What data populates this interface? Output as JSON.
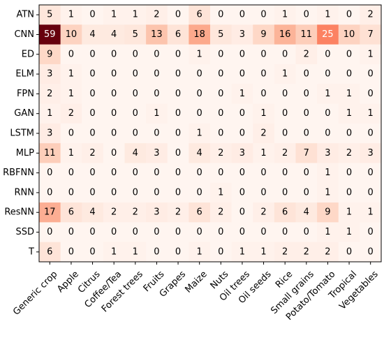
{
  "chart_data": {
    "type": "heatmap",
    "title": "",
    "xlabel": "",
    "ylabel": "",
    "colormap": "Reds",
    "color_range": [
      0,
      59
    ],
    "rows": [
      "ATN",
      "CNN",
      "ED",
      "ELM",
      "FPN",
      "GAN",
      "LSTM",
      "MLP",
      "RBFNN",
      "RNN",
      "ResNN",
      "SSD",
      "T"
    ],
    "columns": [
      "Generic crop",
      "Apple",
      "Citrus",
      "Coffee/Tea",
      "Forest trees",
      "Fruits",
      "Grapes",
      "Maize",
      "Nuts",
      "Oil trees",
      "Oil seeds",
      "Rice",
      "Small grains",
      "Potato/Tomato",
      "Tropical",
      "Vegetables"
    ],
    "values": [
      [
        5,
        1,
        0,
        1,
        1,
        2,
        0,
        6,
        0,
        0,
        0,
        1,
        0,
        1,
        0,
        2
      ],
      [
        59,
        10,
        4,
        4,
        5,
        13,
        6,
        18,
        5,
        3,
        9,
        16,
        11,
        25,
        10,
        7
      ],
      [
        9,
        0,
        0,
        0,
        0,
        0,
        0,
        1,
        0,
        0,
        0,
        0,
        2,
        0,
        0,
        1
      ],
      [
        3,
        1,
        0,
        0,
        0,
        0,
        0,
        0,
        0,
        0,
        0,
        1,
        0,
        0,
        0,
        0
      ],
      [
        2,
        1,
        0,
        0,
        0,
        0,
        0,
        0,
        0,
        1,
        0,
        0,
        0,
        1,
        1,
        0
      ],
      [
        1,
        2,
        0,
        0,
        0,
        1,
        0,
        0,
        0,
        0,
        1,
        0,
        0,
        0,
        1,
        1
      ],
      [
        3,
        0,
        0,
        0,
        0,
        0,
        0,
        1,
        0,
        0,
        2,
        0,
        0,
        0,
        0,
        0
      ],
      [
        11,
        1,
        2,
        0,
        4,
        3,
        0,
        4,
        2,
        3,
        1,
        2,
        7,
        3,
        2,
        3
      ],
      [
        0,
        0,
        0,
        0,
        0,
        0,
        0,
        0,
        0,
        0,
        0,
        0,
        0,
        1,
        0,
        0
      ],
      [
        0,
        0,
        0,
        0,
        0,
        0,
        0,
        0,
        1,
        0,
        0,
        0,
        0,
        1,
        0,
        0
      ],
      [
        17,
        6,
        4,
        2,
        2,
        3,
        2,
        6,
        2,
        0,
        2,
        6,
        4,
        9,
        1,
        1
      ],
      [
        0,
        0,
        0,
        0,
        0,
        0,
        0,
        0,
        0,
        0,
        0,
        0,
        0,
        1,
        1,
        0
      ],
      [
        6,
        0,
        0,
        1,
        1,
        0,
        0,
        1,
        0,
        1,
        1,
        2,
        2,
        2,
        0,
        0
      ]
    ]
  }
}
